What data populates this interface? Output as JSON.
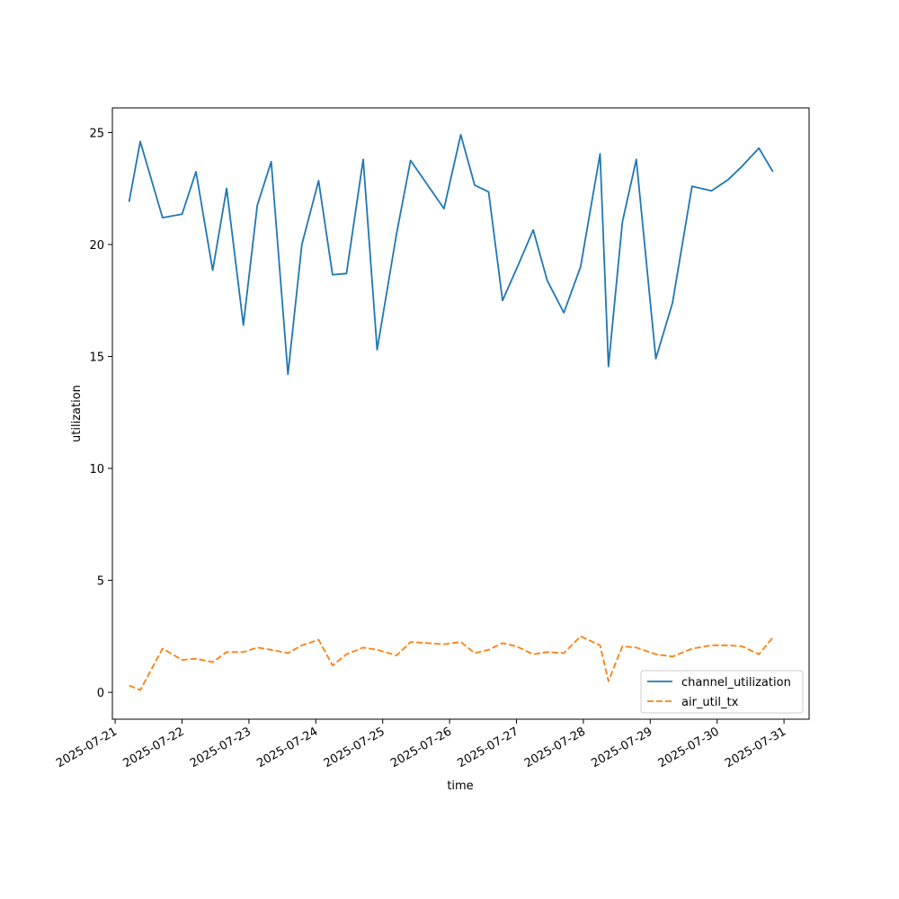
{
  "chart_data": {
    "type": "line",
    "title": "",
    "xlabel": "time",
    "ylabel": "utilization",
    "xlim": [
      "2025-07-20T23:00",
      "2025-07-31T09:00"
    ],
    "ylim": [
      -1.2,
      26.1
    ],
    "grid": false,
    "legend_position": "lower-right",
    "x_tick_labels": [
      "2025-07-21",
      "2025-07-22",
      "2025-07-23",
      "2025-07-24",
      "2025-07-25",
      "2025-07-26",
      "2025-07-27",
      "2025-07-28",
      "2025-07-29",
      "2025-07-30",
      "2025-07-31"
    ],
    "y_tick_labels": [
      "0",
      "5",
      "10",
      "15",
      "20",
      "25"
    ],
    "x_ticks": [
      "2025-07-21",
      "2025-07-22",
      "2025-07-23",
      "2025-07-24",
      "2025-07-25",
      "2025-07-26",
      "2025-07-27",
      "2025-07-28",
      "2025-07-29",
      "2025-07-30",
      "2025-07-31"
    ],
    "y_ticks": [
      0,
      5,
      10,
      15,
      20,
      25
    ],
    "x": [
      "2025-07-21T05:00",
      "2025-07-21T09:00",
      "2025-07-21T17:00",
      "2025-07-22T00:00",
      "2025-07-22T05:00",
      "2025-07-22T11:00",
      "2025-07-22T16:00",
      "2025-07-22T22:00",
      "2025-07-23T03:00",
      "2025-07-23T08:00",
      "2025-07-23T14:00",
      "2025-07-23T19:00",
      "2025-07-24T01:00",
      "2025-07-24T06:00",
      "2025-07-24T11:00",
      "2025-07-24T17:00",
      "2025-07-24T22:00",
      "2025-07-25T05:00",
      "2025-07-25T10:00",
      "2025-07-25T22:00",
      "2025-07-26T04:00",
      "2025-07-26T09:00",
      "2025-07-26T14:00",
      "2025-07-26T19:00",
      "2025-07-27T00:00",
      "2025-07-27T06:00",
      "2025-07-27T11:00",
      "2025-07-27T17:00",
      "2025-07-27T23:00",
      "2025-07-28T06:00",
      "2025-07-28T09:00",
      "2025-07-28T14:00",
      "2025-07-28T19:00",
      "2025-07-29T02:00",
      "2025-07-29T08:00",
      "2025-07-29T15:00",
      "2025-07-29T22:00",
      "2025-07-30T04:00",
      "2025-07-30T09:00",
      "2025-07-30T15:00",
      "2025-07-30T20:00"
    ],
    "series": [
      {
        "name": "channel_utilization",
        "color": "#1f77b4",
        "dash": "solid",
        "values": [
          21.9,
          24.6,
          21.2,
          21.35,
          23.25,
          18.85,
          22.5,
          16.4,
          21.75,
          23.7,
          14.2,
          20.0,
          22.85,
          18.65,
          18.7,
          23.8,
          15.3,
          20.5,
          23.75,
          21.6,
          24.9,
          22.65,
          22.35,
          17.5,
          18.9,
          20.65,
          18.4,
          16.95,
          19.0,
          24.05,
          14.55,
          21.0,
          23.8,
          14.9,
          17.4,
          22.6,
          22.4,
          22.9,
          23.5,
          24.3,
          23.25
        ]
      },
      {
        "name": "air_util_tx",
        "color": "#ff7f0e",
        "dash": "dashed",
        "values": [
          0.3,
          0.1,
          1.95,
          1.45,
          1.5,
          1.35,
          1.8,
          1.8,
          2.0,
          1.9,
          1.75,
          2.1,
          2.35,
          1.2,
          1.7,
          2.0,
          1.9,
          1.65,
          2.25,
          2.15,
          2.25,
          1.75,
          1.9,
          2.2,
          2.05,
          1.7,
          1.8,
          1.75,
          2.5,
          2.1,
          0.5,
          2.05,
          2.0,
          1.7,
          1.6,
          1.95,
          2.1,
          2.1,
          2.05,
          1.7,
          2.45
        ]
      }
    ]
  }
}
